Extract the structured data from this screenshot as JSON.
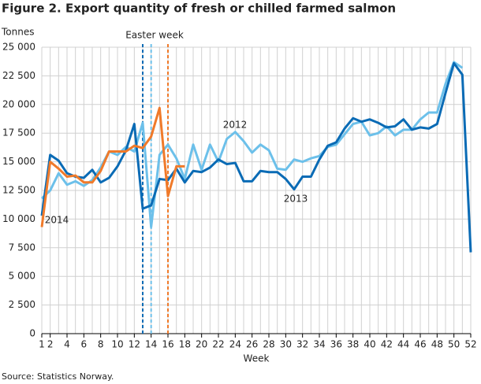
{
  "chart_data": {
    "type": "line",
    "title": "Figure 2. Export quantity of fresh or chilled farmed salmon",
    "y_label": "Tonnes",
    "x_label": "Week",
    "source": "Source: Statistics Norway.",
    "x": [
      1,
      2,
      3,
      4,
      5,
      6,
      7,
      8,
      9,
      10,
      11,
      12,
      13,
      14,
      15,
      16,
      17,
      18,
      19,
      20,
      21,
      22,
      23,
      24,
      25,
      26,
      27,
      28,
      29,
      30,
      31,
      32,
      33,
      34,
      35,
      36,
      37,
      38,
      39,
      40,
      41,
      42,
      43,
      44,
      45,
      46,
      47,
      48,
      49,
      50,
      51,
      52
    ],
    "xlim": [
      1,
      52
    ],
    "xticks": [
      1,
      2,
      4,
      6,
      8,
      10,
      12,
      14,
      16,
      18,
      20,
      22,
      24,
      26,
      28,
      30,
      32,
      34,
      36,
      38,
      40,
      42,
      44,
      46,
      48,
      50,
      52
    ],
    "ylim": [
      0,
      25000
    ],
    "yticks": [
      {
        "value": 0,
        "label": "0"
      },
      {
        "value": 2500,
        "label": "2 500"
      },
      {
        "value": 5000,
        "label": "5 000"
      },
      {
        "value": 7500,
        "label": "7 500"
      },
      {
        "value": 10000,
        "label": "10 000"
      },
      {
        "value": 12500,
        "label": "12 500"
      },
      {
        "value": 15000,
        "label": "15 000"
      },
      {
        "value": 17500,
        "label": "17 500"
      },
      {
        "value": 20000,
        "label": "20 000"
      },
      {
        "value": 22500,
        "label": "22 500"
      },
      {
        "value": 25000,
        "label": "25 000"
      }
    ],
    "grid": true,
    "series": [
      {
        "name": "2012",
        "color": "#6cc0ea",
        "values": [
          11800,
          12500,
          14000,
          13000,
          13300,
          12900,
          13400,
          14500,
          15900,
          15600,
          16300,
          15900,
          18400,
          9300,
          15600,
          16500,
          15300,
          13500,
          16500,
          14300,
          16500,
          15000,
          17000,
          17600,
          16800,
          15800,
          16500,
          16000,
          14400,
          14300,
          15200,
          15000,
          15300,
          15500,
          16300,
          16500,
          17400,
          18300,
          18500,
          17300,
          17500,
          18100,
          17300,
          17800,
          17800,
          18700,
          19300,
          19300,
          21800,
          23700,
          23200,
          null
        ]
      },
      {
        "name": "2013",
        "color": "#0a6bb5",
        "values": [
          10300,
          15600,
          15100,
          14000,
          13700,
          13600,
          14300,
          13200,
          13600,
          14600,
          16000,
          18300,
          10900,
          11200,
          13500,
          13400,
          14400,
          13200,
          14200,
          14100,
          14500,
          15200,
          14800,
          14900,
          13300,
          13300,
          14200,
          14100,
          14100,
          13500,
          12600,
          13700,
          13700,
          15200,
          16400,
          16700,
          17900,
          18800,
          18500,
          18700,
          18400,
          18000,
          18100,
          18700,
          17800,
          18000,
          17900,
          18300,
          21000,
          23600,
          22600,
          7100
        ]
      },
      {
        "name": "2014",
        "color": "#f07a2a",
        "values": [
          9300,
          15000,
          14400,
          13700,
          13800,
          13200,
          13200,
          14200,
          15900,
          15900,
          15900,
          16400,
          16200,
          17200,
          19700,
          12000,
          14600,
          14600,
          null,
          null,
          null,
          null,
          null,
          null,
          null,
          null,
          null,
          null,
          null,
          null,
          null,
          null,
          null,
          null,
          null,
          null,
          null,
          null,
          null,
          null,
          null,
          null,
          null,
          null,
          null,
          null,
          null,
          null,
          null,
          null,
          null,
          null
        ]
      }
    ],
    "easter_label": "Easter week",
    "easter_lines": [
      {
        "x": 13,
        "color": "#0a6bb5"
      },
      {
        "x": 14,
        "color": "#6cc0ea"
      },
      {
        "x": 16,
        "color": "#f07a2a"
      }
    ]
  }
}
